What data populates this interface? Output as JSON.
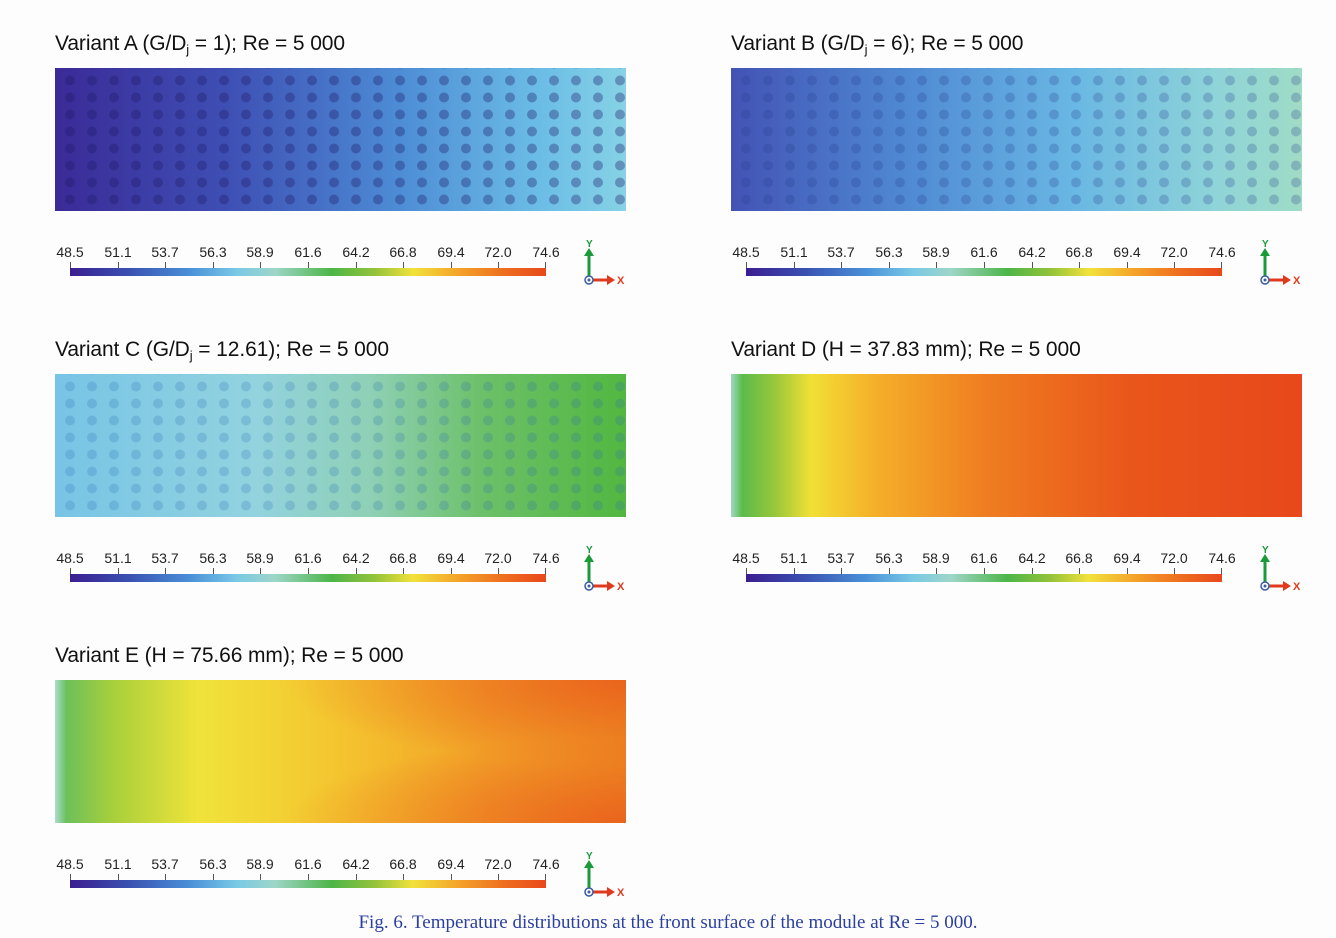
{
  "panels": [
    {
      "id": "a",
      "title": "Variant A (G/D",
      "sub": "j",
      "title_rest": " = 1); Re = 5 000",
      "fill": "grad-a"
    },
    {
      "id": "b",
      "title": "Variant B (G/D",
      "sub": "j",
      "title_rest": " = 6); Re = 5 000",
      "fill": "grad-b"
    },
    {
      "id": "c",
      "title": "Variant C (G/D",
      "sub": "j",
      "title_rest": " = 12.61); Re = 5 000",
      "fill": "grad-c"
    },
    {
      "id": "d",
      "title": "Variant D (H = 37.83 mm); Re = 5 000",
      "sub": "",
      "title_rest": "",
      "fill": "grad-d"
    },
    {
      "id": "e",
      "title": "Variant E (H = 75.66 mm); Re = 5 000",
      "sub": "",
      "title_rest": "",
      "fill": "grad-e"
    }
  ],
  "colorbar": {
    "ticks": [
      "48.5",
      "51.1",
      "53.7",
      "56.3",
      "58.9",
      "61.6",
      "64.2",
      "66.8",
      "69.4",
      "72.0",
      "74.6"
    ],
    "colors": [
      "#3b1e8f",
      "#4a8fd8",
      "#79c9e6",
      "#4db548",
      "#f1e23b",
      "#ee6f1f",
      "#e8481b"
    ]
  },
  "axes": {
    "y_label": "Y",
    "x_label": "X",
    "y_color": "#1a9a3a",
    "x_color": "#e03a1e"
  },
  "caption": "Fig. 6. Temperature distributions at the front surface of the module at Re = 5 000."
}
